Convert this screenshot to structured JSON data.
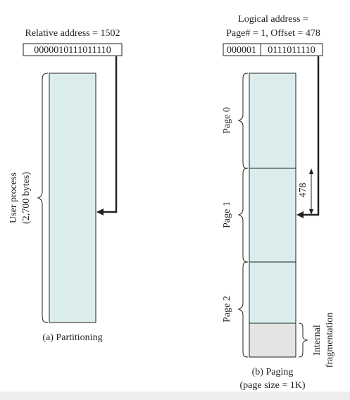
{
  "left": {
    "address_label": "Relative address = 1502",
    "address_bits": "0000010111011110",
    "process_label_line1": "User process",
    "process_label_line2": "(2,700 bytes)",
    "caption": "(a) Partitioning"
  },
  "right": {
    "address_label_line1": "Logical address =",
    "address_label_line2": "Page# = 1, Offset = 478",
    "page_bits": "000001",
    "offset_bits": "0111011110",
    "pages": [
      "Page 0",
      "Page 1",
      "Page 2"
    ],
    "offset_marker": "478",
    "fragmentation_line1": "Internal",
    "fragmentation_line2": "fragmentation",
    "caption_line1": "(b) Paging",
    "caption_line2": "(page size = 1K)"
  },
  "colors": {
    "process_fill": "#dbecec",
    "fragment_fill": "#e4e4e4",
    "stroke": "#222222"
  }
}
